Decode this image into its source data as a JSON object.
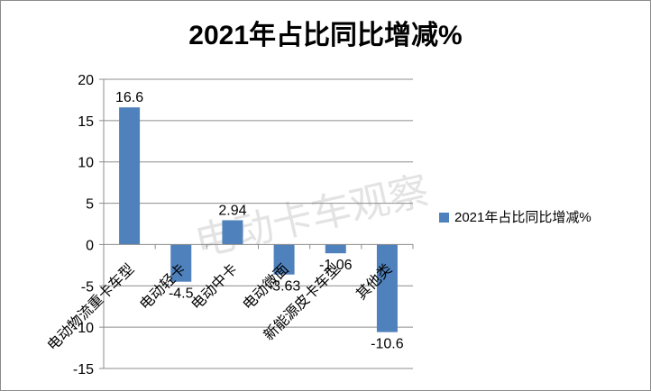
{
  "chart_data": {
    "type": "bar",
    "title": "2021年占比同比增减%",
    "watermark": "电动卡车观察",
    "categories": [
      "电动物流重卡车型",
      "电动轻卡",
      "电动中卡",
      "电动微面",
      "新能源皮卡车型",
      "其他类"
    ],
    "series": [
      {
        "name": "2021年占比同比增减%",
        "values": [
          16.6,
          -4.5,
          2.94,
          -3.63,
          -1.06,
          -10.6
        ],
        "color": "#4f81bd"
      }
    ],
    "data_labels": [
      "16.6",
      "-4.5",
      "2.94",
      "-3.63",
      "-1.06",
      "-10.6"
    ],
    "y_ticks": [
      "20",
      "15",
      "10",
      "5",
      "0",
      "-5",
      "-10",
      "-15"
    ],
    "ylim": [
      -15,
      20
    ],
    "grid": true,
    "legend_position": "right",
    "xlabel": "",
    "ylabel": ""
  }
}
